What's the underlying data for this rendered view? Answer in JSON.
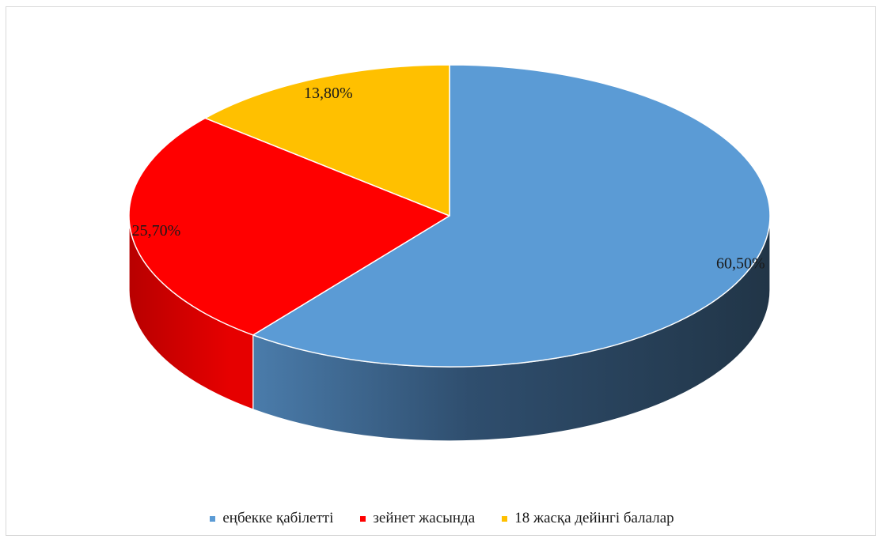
{
  "chart_data": {
    "type": "pie",
    "style": "3d",
    "categories": [
      "еңбекке қабілетті",
      "зейнет жасында",
      "18 жасқа дейінгі балалар"
    ],
    "values": [
      60.5,
      25.7,
      13.8
    ],
    "labels": [
      "60,50%",
      "25,70%",
      "13,80%"
    ],
    "colors": [
      "#5b9bd5",
      "#ff0000",
      "#ffc000"
    ],
    "legend_position": "bottom"
  }
}
